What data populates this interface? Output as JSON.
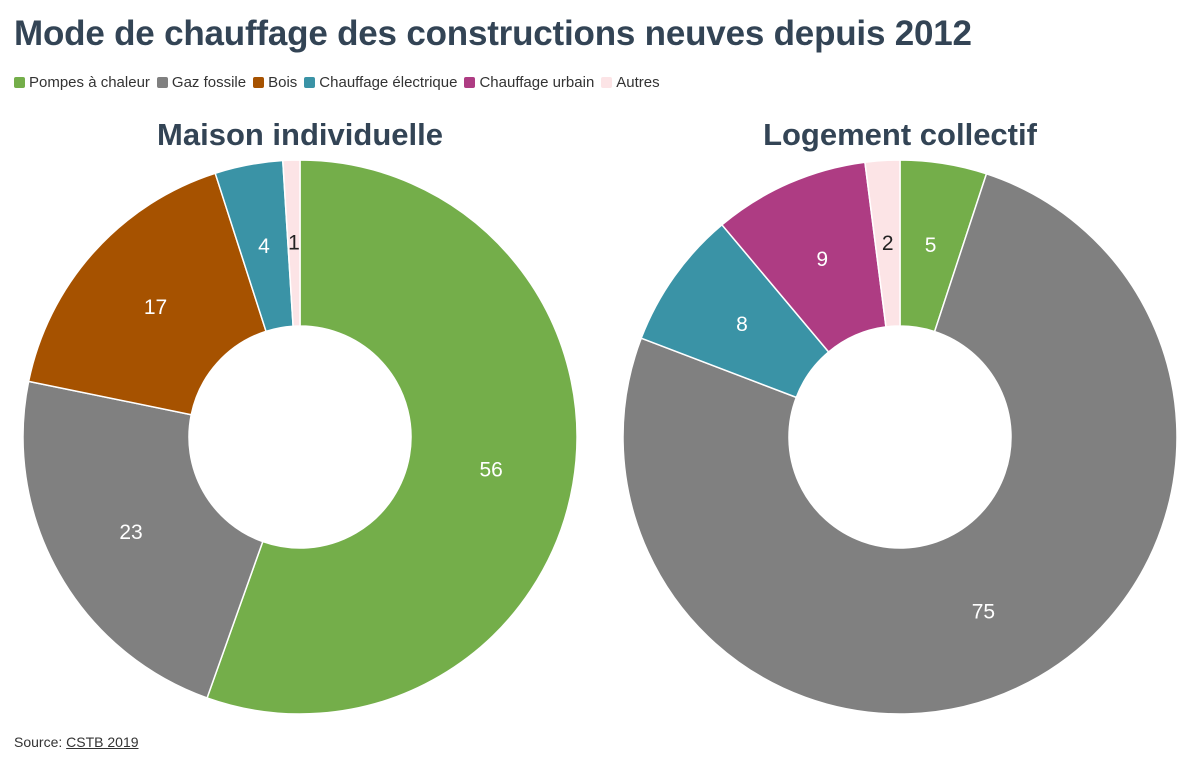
{
  "title": "Mode de chauffage des constructions neuves depuis 2012",
  "legend": [
    {
      "label": "Pompes à chaleur",
      "color": "#74ae4a"
    },
    {
      "label": "Gaz fossile",
      "color": "#808080"
    },
    {
      "label": "Bois",
      "color": "#a65200"
    },
    {
      "label": "Chauffage électrique",
      "color": "#3a93a6"
    },
    {
      "label": "Chauffage urbain",
      "color": "#ae3c83"
    },
    {
      "label": "Autres",
      "color": "#fce4e6"
    }
  ],
  "source": {
    "prefix": "Source: ",
    "link": "CSTB 2019"
  },
  "chart_data": [
    {
      "type": "pie",
      "title": "Maison individuelle",
      "categories": [
        "Pompes à chaleur",
        "Gaz fossile",
        "Bois",
        "Chauffage électrique",
        "Autres"
      ],
      "values": [
        56,
        23,
        17,
        4,
        1
      ],
      "colors": [
        "#74ae4a",
        "#808080",
        "#a65200",
        "#3a93a6",
        "#fce4e6"
      ],
      "label_colors": [
        "#ffffff",
        "#ffffff",
        "#ffffff",
        "#ffffff",
        "#222222"
      ],
      "labels": [
        "56",
        "23",
        "17",
        "4",
        "1"
      ]
    },
    {
      "type": "pie",
      "title": "Logement collectif",
      "categories": [
        "Pompes à chaleur",
        "Gaz fossile",
        "Chauffage électrique",
        "Chauffage urbain",
        "Autres"
      ],
      "values": [
        5,
        75,
        8,
        9,
        2
      ],
      "colors": [
        "#74ae4a",
        "#808080",
        "#3a93a6",
        "#ae3c83",
        "#fce4e6"
      ],
      "label_colors": [
        "#ffffff",
        "#ffffff",
        "#ffffff",
        "#ffffff",
        "#222222"
      ],
      "labels": [
        "5",
        "75",
        "8",
        "9",
        "2"
      ]
    }
  ]
}
